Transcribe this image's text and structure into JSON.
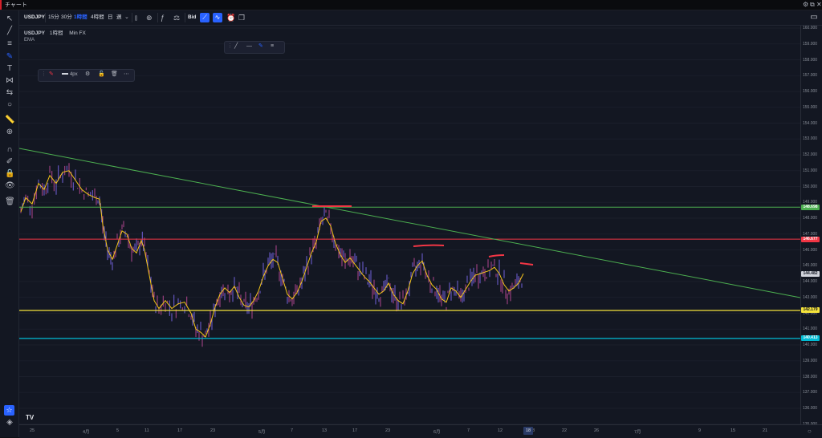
{
  "window": {
    "title": "チャート"
  },
  "toolbar": {
    "symbol": "USDJPY",
    "intervals": [
      "15分",
      "30分",
      "1時間",
      "4時間",
      "日",
      "週"
    ],
    "active_interval": "1時間",
    "bid_label": "Bid"
  },
  "legend": {
    "symbol": "USDJPY",
    "interval": "1時間",
    "source": "Min FX",
    "indicator": "EMA"
  },
  "draw_toolbar": {
    "width_label": "4px"
  },
  "price_axis": {
    "labels": [
      "160.000",
      "159.000",
      "158.000",
      "157.000",
      "156.000",
      "155.000",
      "154.000",
      "153.000",
      "152.000",
      "151.000",
      "150.000",
      "149.000",
      "148.000",
      "147.000",
      "146.000",
      "145.000",
      "144.000",
      "143.000",
      "142.000",
      "141.000",
      "140.000",
      "139.000",
      "138.000",
      "137.000",
      "136.000",
      "135.000"
    ],
    "tags": [
      {
        "value": "148.698",
        "color": "#4caf50"
      },
      {
        "value": "146.677",
        "color": "#f23645"
      },
      {
        "value": "144.482",
        "color": "#d1d4dc"
      },
      {
        "value": "142.179",
        "color": "#f5e33b"
      },
      {
        "value": "140.413",
        "color": "#00bcd4"
      }
    ]
  },
  "time_axis": {
    "labels": [
      "25",
      "4月",
      "5",
      "11",
      "17",
      "23",
      "5月",
      "7",
      "13",
      "17",
      "23",
      "6月",
      "7",
      "12",
      "18",
      "22",
      "26",
      "7月",
      "9",
      "15",
      "21"
    ],
    "current": "18"
  },
  "colors": {
    "background": "#131722",
    "support_green": "#4caf50",
    "resistance_red": "#f23645",
    "support_yellow": "#f5e33b",
    "support_cyan": "#00bcd4",
    "trendline": "#4caf50",
    "ema": "#f5c518",
    "candles": "#6d5bd0"
  }
}
